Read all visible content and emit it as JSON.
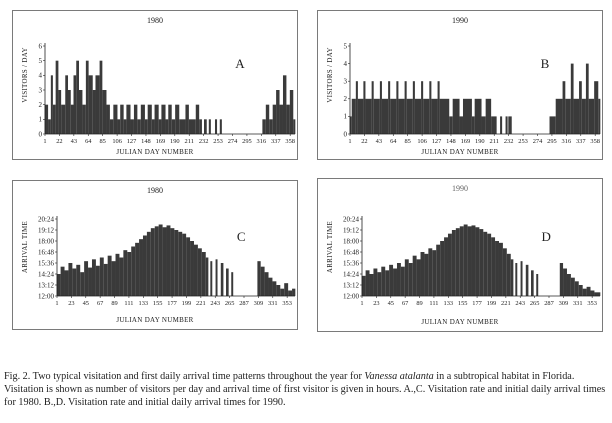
{
  "caption": {
    "part1": "Fig. 2. Two typical visitation and first daily arrival time patterns throughout the year for ",
    "species": "Vanessa atalanta",
    "part2": " in a subtropical habitat in Florida. Visitation is shown as number of visitors per day and arrival time of first visitor is given in hours. A.,C. Visitation rate and initial daily arrival times for 1980. B.,D. Visitation rate and initial daily arrival times for 1990."
  },
  "chart_data": [
    {
      "id": "A",
      "type": "bar",
      "title": "1980",
      "letter": "A",
      "ylabel": "VISITORS / DAY",
      "xlabel": "JULIAN DAY NUMBER",
      "ylim": [
        0,
        6
      ],
      "yticks": [
        "0",
        "1",
        "2",
        "3",
        "4",
        "5",
        "6"
      ],
      "xlim": [
        1,
        365
      ],
      "xticks": [
        "1",
        "22",
        "43",
        "64",
        "85",
        "106",
        "127",
        "148",
        "169",
        "190",
        "211",
        "232",
        "253",
        "274",
        "295",
        "316",
        "337",
        "358"
      ],
      "segments": [
        [
          1,
          5,
          2
        ],
        [
          6,
          9,
          1
        ],
        [
          10,
          12,
          4
        ],
        [
          13,
          16,
          2
        ],
        [
          17,
          20,
          5
        ],
        [
          21,
          24,
          3
        ],
        [
          25,
          30,
          2
        ],
        [
          31,
          34,
          4
        ],
        [
          35,
          38,
          3
        ],
        [
          39,
          42,
          2
        ],
        [
          43,
          46,
          4
        ],
        [
          47,
          50,
          5
        ],
        [
          51,
          55,
          3
        ],
        [
          56,
          60,
          2
        ],
        [
          61,
          64,
          5
        ],
        [
          65,
          70,
          4
        ],
        [
          71,
          74,
          3
        ],
        [
          75,
          80,
          4
        ],
        [
          81,
          84,
          5
        ],
        [
          85,
          90,
          3
        ],
        [
          91,
          95,
          2
        ],
        [
          96,
          100,
          1
        ],
        [
          101,
          106,
          2
        ],
        [
          107,
          110,
          1
        ],
        [
          111,
          115,
          2
        ],
        [
          116,
          119,
          1
        ],
        [
          120,
          125,
          2
        ],
        [
          126,
          130,
          1
        ],
        [
          131,
          135,
          2
        ],
        [
          136,
          140,
          1
        ],
        [
          141,
          146,
          2
        ],
        [
          147,
          150,
          1
        ],
        [
          151,
          156,
          2
        ],
        [
          157,
          160,
          1
        ],
        [
          161,
          166,
          2
        ],
        [
          167,
          170,
          1
        ],
        [
          171,
          176,
          2
        ],
        [
          177,
          180,
          1
        ],
        [
          181,
          185,
          2
        ],
        [
          186,
          190,
          1
        ],
        [
          191,
          196,
          2
        ],
        [
          197,
          205,
          1
        ],
        [
          206,
          210,
          2
        ],
        [
          211,
          220,
          1
        ],
        [
          221,
          225,
          2
        ],
        [
          226,
          229,
          1
        ],
        [
          233,
          236,
          1
        ],
        [
          240,
          242,
          1
        ],
        [
          249,
          251,
          1
        ],
        [
          256,
          258,
          1
        ],
        [
          318,
          322,
          1
        ],
        [
          323,
          327,
          2
        ],
        [
          328,
          332,
          1
        ],
        [
          333,
          337,
          2
        ],
        [
          338,
          342,
          3
        ],
        [
          343,
          347,
          2
        ],
        [
          348,
          352,
          4
        ],
        [
          353,
          357,
          2
        ],
        [
          358,
          362,
          3
        ],
        [
          363,
          365,
          1
        ]
      ]
    },
    {
      "id": "B",
      "type": "bar",
      "title": "1990",
      "letter": "B",
      "ylabel": "VISITORS / DAY",
      "xlabel": "JULIAN DAY NUMBER",
      "ylim": [
        0,
        5
      ],
      "yticks": [
        "0",
        "1",
        "2",
        "3",
        "4",
        "5"
      ],
      "xlim": [
        1,
        365
      ],
      "xticks": [
        "1",
        "22",
        "43",
        "64",
        "85",
        "106",
        "127",
        "148",
        "169",
        "190",
        "211",
        "232",
        "253",
        "274",
        "295",
        "316",
        "337",
        "358"
      ],
      "segments": [
        [
          1,
          3,
          1
        ],
        [
          4,
          9,
          2
        ],
        [
          10,
          12,
          3
        ],
        [
          13,
          20,
          2
        ],
        [
          21,
          23,
          3
        ],
        [
          24,
          32,
          2
        ],
        [
          33,
          35,
          3
        ],
        [
          36,
          44,
          2
        ],
        [
          45,
          47,
          3
        ],
        [
          48,
          56,
          2
        ],
        [
          57,
          59,
          3
        ],
        [
          60,
          68,
          2
        ],
        [
          69,
          71,
          3
        ],
        [
          72,
          80,
          2
        ],
        [
          81,
          83,
          3
        ],
        [
          84,
          92,
          2
        ],
        [
          93,
          95,
          3
        ],
        [
          96,
          104,
          2
        ],
        [
          105,
          107,
          3
        ],
        [
          108,
          116,
          2
        ],
        [
          117,
          119,
          3
        ],
        [
          120,
          128,
          2
        ],
        [
          129,
          131,
          3
        ],
        [
          132,
          145,
          2
        ],
        [
          146,
          150,
          1
        ],
        [
          151,
          160,
          2
        ],
        [
          161,
          165,
          1
        ],
        [
          166,
          178,
          2
        ],
        [
          179,
          182,
          1
        ],
        [
          183,
          192,
          2
        ],
        [
          193,
          198,
          1
        ],
        [
          199,
          206,
          2
        ],
        [
          207,
          214,
          1
        ],
        [
          220,
          222,
          1
        ],
        [
          228,
          230,
          1
        ],
        [
          232,
          236,
          1
        ],
        [
          292,
          300,
          1
        ],
        [
          301,
          310,
          2
        ],
        [
          311,
          314,
          3
        ],
        [
          315,
          322,
          2
        ],
        [
          323,
          326,
          4
        ],
        [
          327,
          334,
          2
        ],
        [
          335,
          338,
          3
        ],
        [
          339,
          344,
          2
        ],
        [
          345,
          348,
          4
        ],
        [
          349,
          356,
          2
        ],
        [
          357,
          362,
          3
        ],
        [
          363,
          365,
          2
        ]
      ]
    },
    {
      "id": "C",
      "type": "bar",
      "title": "1980",
      "letter": "C",
      "ylabel": "ARRIVAL TIME",
      "xlabel": "JULIAN DAY NUMBER",
      "ylim": [
        12.0,
        20.4
      ],
      "yticks": [
        "12:00",
        "13:12",
        "14:24",
        "15:36",
        "16:48",
        "18:00",
        "19:12",
        "20:24"
      ],
      "xlim": [
        1,
        365
      ],
      "xticks": [
        "1",
        "23",
        "45",
        "67",
        "89",
        "111",
        "133",
        "155",
        "177",
        "199",
        "221",
        "243",
        "265",
        "287",
        "309",
        "331",
        "353"
      ],
      "segments": [
        [
          1,
          6,
          14.4
        ],
        [
          7,
          12,
          15.2
        ],
        [
          13,
          18,
          14.8
        ],
        [
          19,
          24,
          15.6
        ],
        [
          25,
          30,
          15.0
        ],
        [
          31,
          36,
          15.4
        ],
        [
          37,
          42,
          14.6
        ],
        [
          43,
          48,
          15.8
        ],
        [
          49,
          54,
          15.1
        ],
        [
          55,
          60,
          16.0
        ],
        [
          61,
          66,
          15.3
        ],
        [
          67,
          72,
          16.2
        ],
        [
          73,
          78,
          15.5
        ],
        [
          79,
          84,
          16.4
        ],
        [
          85,
          90,
          15.8
        ],
        [
          91,
          96,
          16.6
        ],
        [
          97,
          102,
          16.2
        ],
        [
          103,
          108,
          17.0
        ],
        [
          109,
          114,
          16.8
        ],
        [
          115,
          120,
          17.4
        ],
        [
          121,
          126,
          17.8
        ],
        [
          127,
          132,
          18.2
        ],
        [
          133,
          138,
          18.6
        ],
        [
          139,
          144,
          19.0
        ],
        [
          145,
          150,
          19.4
        ],
        [
          151,
          156,
          19.6
        ],
        [
          157,
          162,
          19.8
        ],
        [
          163,
          168,
          19.5
        ],
        [
          169,
          174,
          19.7
        ],
        [
          175,
          180,
          19.4
        ],
        [
          181,
          186,
          19.2
        ],
        [
          187,
          192,
          19.0
        ],
        [
          193,
          198,
          18.8
        ],
        [
          199,
          204,
          18.4
        ],
        [
          205,
          210,
          18.0
        ],
        [
          211,
          216,
          17.6
        ],
        [
          217,
          222,
          17.2
        ],
        [
          223,
          228,
          16.8
        ],
        [
          229,
          232,
          16.2
        ],
        [
          236,
          238,
          15.8
        ],
        [
          244,
          246,
          16.0
        ],
        [
          252,
          255,
          15.6
        ],
        [
          260,
          263,
          15.0
        ],
        [
          268,
          270,
          14.6
        ],
        [
          308,
          312,
          15.8
        ],
        [
          313,
          318,
          15.2
        ],
        [
          319,
          324,
          14.6
        ],
        [
          325,
          330,
          14.0
        ],
        [
          331,
          336,
          13.6
        ],
        [
          337,
          342,
          13.2
        ],
        [
          343,
          348,
          12.8
        ],
        [
          349,
          354,
          13.4
        ],
        [
          355,
          360,
          12.6
        ],
        [
          361,
          365,
          12.8
        ]
      ]
    },
    {
      "id": "D",
      "type": "bar",
      "title": "1990",
      "letter": "D",
      "ylabel": "ARRIVAL TIME",
      "xlabel": "JULIAN DAY NUMBER",
      "ylim": [
        12.0,
        20.4
      ],
      "yticks": [
        "12:00",
        "13:12",
        "14:24",
        "15:36",
        "16:48",
        "18:00",
        "19:12",
        "20:24"
      ],
      "xlim": [
        1,
        365
      ],
      "xticks": [
        "1",
        "23",
        "45",
        "67",
        "89",
        "111",
        "133",
        "155",
        "177",
        "199",
        "221",
        "243",
        "265",
        "287",
        "309",
        "331",
        "353"
      ],
      "segments": [
        [
          1,
          6,
          14.2
        ],
        [
          7,
          12,
          14.8
        ],
        [
          13,
          18,
          14.4
        ],
        [
          19,
          24,
          15.0
        ],
        [
          25,
          30,
          14.6
        ],
        [
          31,
          36,
          15.2
        ],
        [
          37,
          42,
          14.8
        ],
        [
          43,
          48,
          15.4
        ],
        [
          49,
          54,
          15.0
        ],
        [
          55,
          60,
          15.6
        ],
        [
          61,
          66,
          15.2
        ],
        [
          67,
          72,
          16.0
        ],
        [
          73,
          78,
          15.6
        ],
        [
          79,
          84,
          16.4
        ],
        [
          85,
          90,
          16.0
        ],
        [
          91,
          96,
          16.8
        ],
        [
          97,
          102,
          16.6
        ],
        [
          103,
          108,
          17.2
        ],
        [
          109,
          114,
          17.0
        ],
        [
          115,
          120,
          17.6
        ],
        [
          121,
          126,
          18.0
        ],
        [
          127,
          132,
          18.4
        ],
        [
          133,
          138,
          18.8
        ],
        [
          139,
          144,
          19.2
        ],
        [
          145,
          150,
          19.4
        ],
        [
          151,
          156,
          19.6
        ],
        [
          157,
          162,
          19.8
        ],
        [
          163,
          168,
          19.6
        ],
        [
          169,
          174,
          19.7
        ],
        [
          175,
          180,
          19.5
        ],
        [
          181,
          186,
          19.3
        ],
        [
          187,
          192,
          19.0
        ],
        [
          193,
          198,
          18.8
        ],
        [
          199,
          204,
          18.4
        ],
        [
          205,
          210,
          18.0
        ],
        [
          211,
          216,
          17.8
        ],
        [
          217,
          222,
          17.2
        ],
        [
          223,
          228,
          16.6
        ],
        [
          229,
          232,
          16.0
        ],
        [
          236,
          238,
          15.6
        ],
        [
          244,
          246,
          15.8
        ],
        [
          252,
          255,
          15.4
        ],
        [
          260,
          263,
          14.8
        ],
        [
          268,
          270,
          14.4
        ],
        [
          304,
          308,
          15.6
        ],
        [
          309,
          314,
          15.0
        ],
        [
          315,
          320,
          14.4
        ],
        [
          321,
          326,
          14.0
        ],
        [
          327,
          332,
          13.6
        ],
        [
          333,
          338,
          13.2
        ],
        [
          339,
          344,
          12.8
        ],
        [
          345,
          350,
          13.0
        ],
        [
          351,
          356,
          12.6
        ],
        [
          357,
          365,
          12.4
        ]
      ]
    }
  ]
}
